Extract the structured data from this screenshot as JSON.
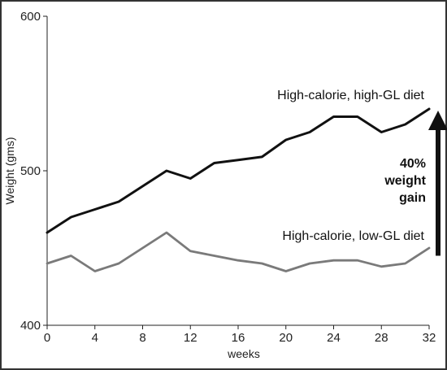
{
  "chart_data": {
    "type": "line",
    "title": "",
    "xlabel": "weeks",
    "ylabel": "Weight (gms)",
    "xlim": [
      0,
      32
    ],
    "ylim": [
      400,
      600
    ],
    "xticks": [
      0,
      4,
      8,
      12,
      16,
      20,
      24,
      28,
      32
    ],
    "yticks": [
      400,
      500,
      600
    ],
    "grid": false,
    "series": [
      {
        "name": "High-calorie, high-GL diet",
        "color": "#111111",
        "x": [
          0,
          2,
          4,
          6,
          8,
          10,
          12,
          14,
          16,
          18,
          20,
          22,
          24,
          26,
          28,
          30,
          32
        ],
        "y": [
          460,
          470,
          475,
          480,
          490,
          500,
          495,
          505,
          507,
          509,
          520,
          525,
          535,
          535,
          525,
          530,
          540
        ]
      },
      {
        "name": "High-calorie, low-GL diet",
        "color": "#7a7a7a",
        "x": [
          0,
          2,
          4,
          6,
          8,
          10,
          12,
          14,
          16,
          18,
          20,
          22,
          24,
          26,
          28,
          30,
          32
        ],
        "y": [
          440,
          445,
          435,
          440,
          450,
          460,
          448,
          445,
          442,
          440,
          435,
          440,
          442,
          442,
          438,
          440,
          450
        ]
      }
    ],
    "annotation": {
      "lines": [
        "40%",
        "weight",
        "gain"
      ],
      "arrow_from": 445,
      "arrow_to": 540
    }
  }
}
